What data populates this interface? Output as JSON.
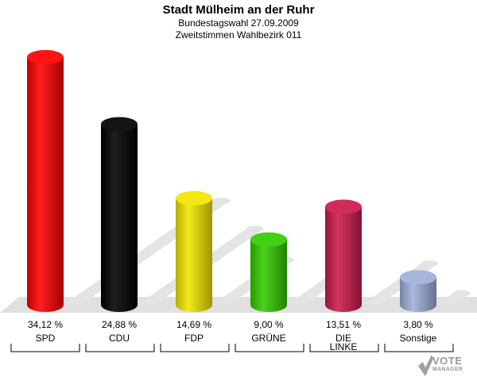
{
  "header": {
    "title": "Stadt Mülheim an der Ruhr",
    "subtitle1": "Bundestagswahl 27.09.2009",
    "subtitle2": "Zweitstimmen Wahlbezirk 011"
  },
  "logo": {
    "line1": "VOTE",
    "line2": "MANAGER"
  },
  "chart_data": {
    "type": "bar",
    "title": "Stadt Mülheim an der Ruhr",
    "subtitle": "Bundestagswahl 27.09.2009 / Zweitstimmen Wahlbezirk 011",
    "categories": [
      "SPD",
      "CDU",
      "FDP",
      "GRÜNE",
      "DIE LINKE",
      "Sonstige"
    ],
    "category_lines": [
      [
        "SPD"
      ],
      [
        "CDU"
      ],
      [
        "FDP"
      ],
      [
        "GRÜNE"
      ],
      [
        "DIE",
        "LINKE"
      ],
      [
        "Sonstige"
      ]
    ],
    "values": [
      34.12,
      24.88,
      14.69,
      9.0,
      13.51,
      3.8
    ],
    "value_labels": [
      "34,12 %",
      "24,88 %",
      "14,69 %",
      "9,00 %",
      "13,51 %",
      "3,80 %"
    ],
    "colors": [
      "#ff0000",
      "#000000",
      "#f2e600",
      "#33cc00",
      "#cc1a4d",
      "#9fb0d8"
    ],
    "bar_shape": "cylinder",
    "shadows": true,
    "grid": false,
    "legend": "none"
  }
}
